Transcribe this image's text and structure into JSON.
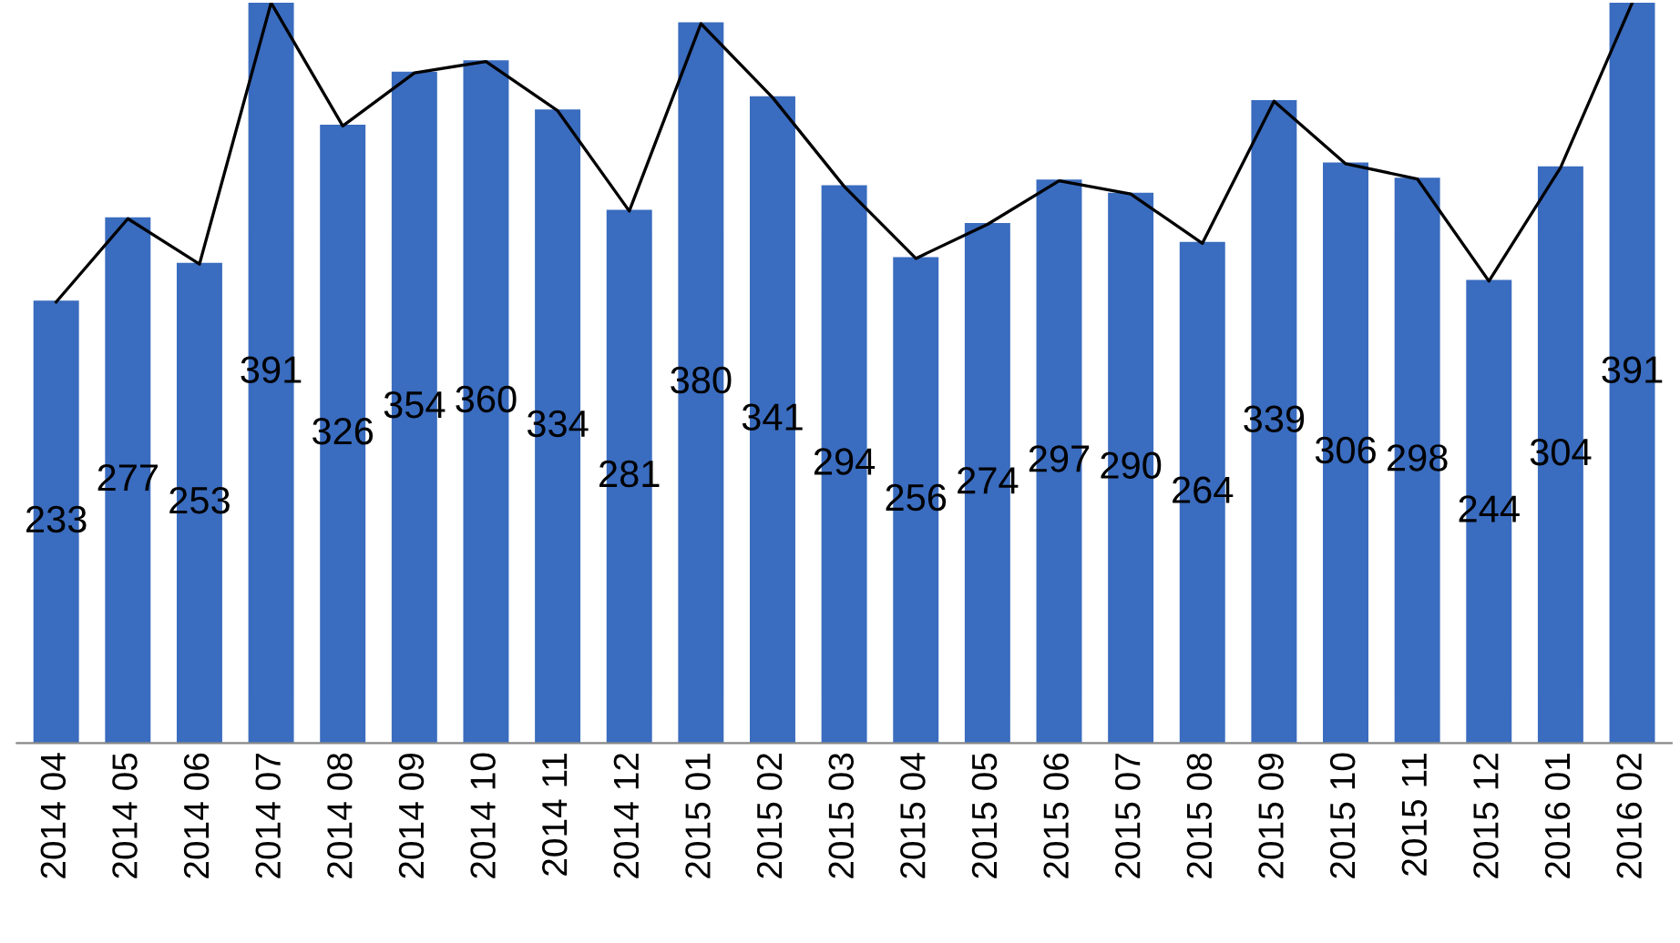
{
  "chart_data": {
    "type": "bar",
    "categories": [
      "2014 04",
      "2014 05",
      "2014 06",
      "2014 07",
      "2014 08",
      "2014 09",
      "2014 10",
      "2014 11",
      "2014 12",
      "2015 01",
      "2015 02",
      "2015 03",
      "2015 04",
      "2015 05",
      "2015 06",
      "2015 07",
      "2015 08",
      "2015 09",
      "2015 10",
      "2015 11",
      "2015 12",
      "2016 01",
      "2016 02"
    ],
    "series": [
      {
        "color": "#3a6cbf",
        "values": [
          233,
          277,
          253,
          391,
          326,
          354,
          360,
          334,
          281,
          380,
          341,
          294,
          256,
          274,
          297,
          290,
          264,
          339,
          306,
          298,
          244,
          304,
          391
        ],
        "value_labels": [
          "233",
          "277",
          "253",
          "391",
          "326",
          "354",
          "360",
          "334",
          "281",
          "380",
          "341",
          "294",
          "256",
          "274",
          "297",
          "290",
          "264",
          "339",
          "306",
          "298",
          "244",
          "304",
          "391"
        ]
      },
      {
        "type": "line",
        "color": "#000000",
        "values": [
          233,
          277,
          253,
          391,
          326,
          354,
          360,
          334,
          281,
          380,
          341,
          294,
          256,
          274,
          297,
          290,
          264,
          339,
          306,
          298,
          244,
          304,
          391
        ]
      }
    ],
    "tick_labels": "x",
    "grid": false
  }
}
